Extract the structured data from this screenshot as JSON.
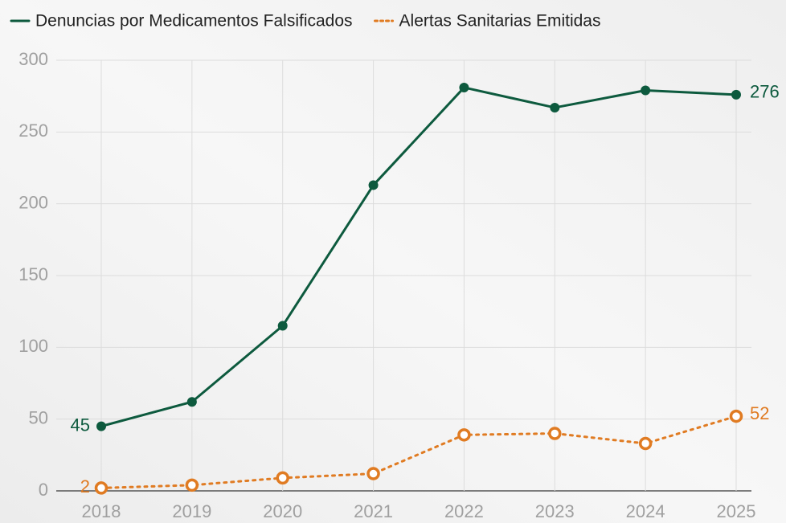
{
  "chart_data": {
    "type": "line",
    "categories": [
      "2018",
      "2019",
      "2020",
      "2021",
      "2022",
      "2023",
      "2024",
      "2025"
    ],
    "series": [
      {
        "name": "Denuncias por Medicamentos Falsificados",
        "color": "#0d5a3e",
        "line_style": "solid",
        "marker": "filled",
        "values": [
          45,
          62,
          115,
          213,
          281,
          267,
          279,
          276
        ]
      },
      {
        "name": "Alertas Sanitarias Emitidas",
        "color": "#e07b22",
        "line_style": "dotted",
        "marker": "hollow",
        "values": [
          2,
          4,
          9,
          12,
          39,
          40,
          33,
          52
        ]
      }
    ],
    "ylim": [
      0,
      300
    ],
    "yticks": [
      0,
      50,
      100,
      150,
      200,
      250,
      300
    ],
    "grid": true,
    "legend": "top"
  }
}
